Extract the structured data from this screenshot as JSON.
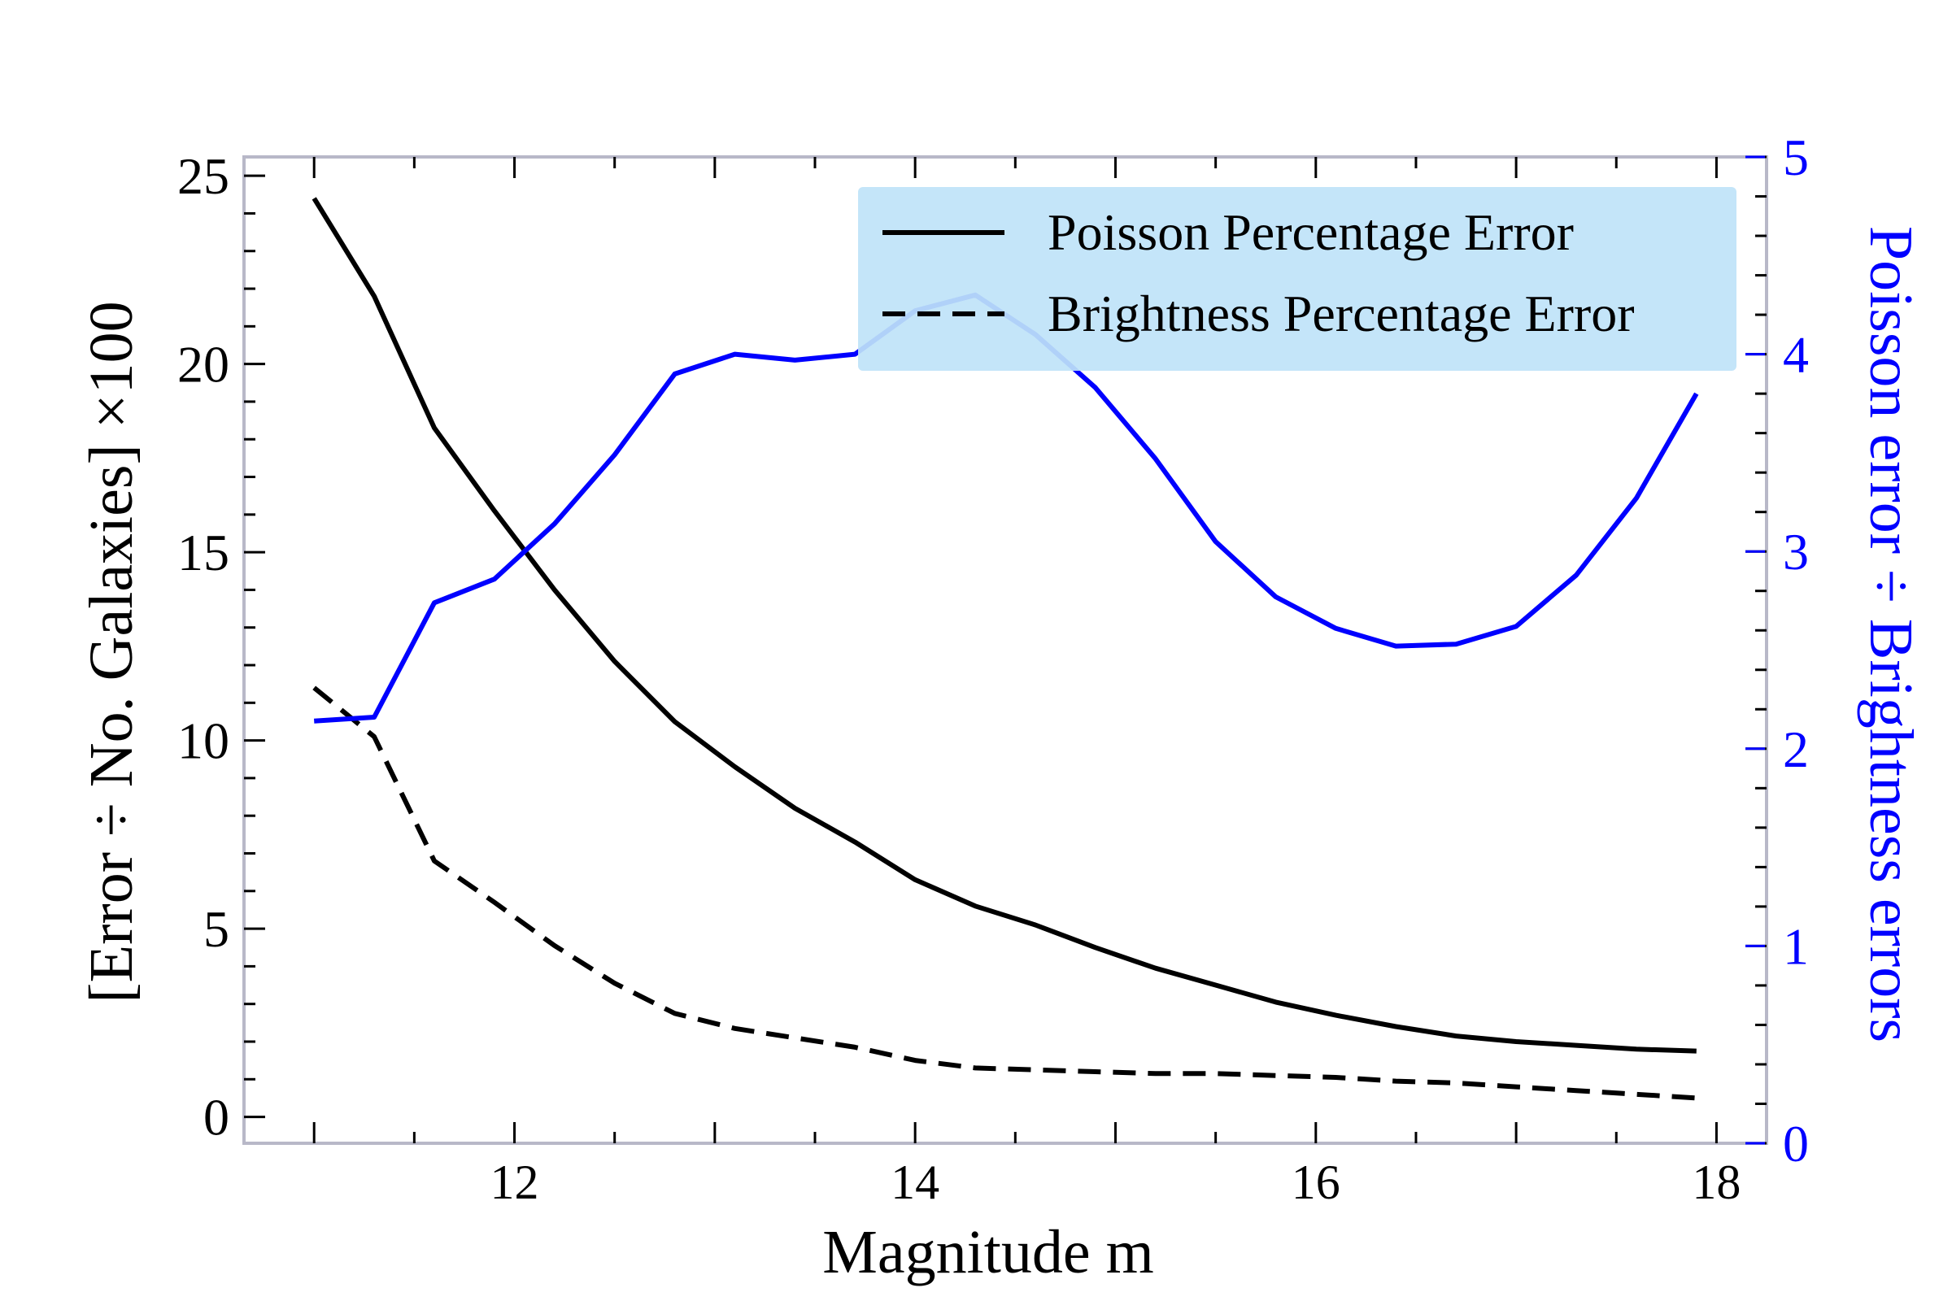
{
  "colors": {
    "poisson": "#000000",
    "brightness": "#000000",
    "ratio": "#0000ff",
    "spine": "#b8b8c8",
    "legend_bg": "#bfe3f8"
  },
  "chart_data": {
    "type": "line",
    "xlabel": "Magnitude m",
    "ylabel": "[Error ÷ No. Galaxies] ×100",
    "ylabel_right": "Poisson error ÷ Brightness errors",
    "xlim": [
      10.65,
      18.25
    ],
    "ylim": [
      -0.7,
      25.5
    ],
    "ylim_right": [
      0,
      5
    ],
    "xticks": [
      12,
      14,
      16,
      18
    ],
    "xtick_labels": [
      "12",
      "14",
      "16",
      "18"
    ],
    "yticks": [
      0,
      5,
      10,
      15,
      20,
      25
    ],
    "ytick_labels": [
      "0",
      "5",
      "10",
      "15",
      "20",
      "25"
    ],
    "yticks_right": [
      0,
      1,
      2,
      3,
      4,
      5
    ],
    "ytick_labels_right": [
      "0",
      "1",
      "2",
      "3",
      "4",
      "5"
    ],
    "legend_position": "top-right",
    "grid": false,
    "x": [
      11.0,
      11.3,
      11.6,
      11.9,
      12.2,
      12.5,
      12.8,
      13.1,
      13.4,
      13.7,
      14.0,
      14.3,
      14.6,
      14.9,
      15.2,
      15.5,
      15.8,
      16.1,
      16.4,
      16.7,
      17.0,
      17.3,
      17.6,
      17.9
    ],
    "series": [
      {
        "name": "Poisson Percentage Error",
        "axis": "left",
        "style": "solid",
        "values": [
          24.4,
          21.8,
          18.3,
          16.1,
          14.0,
          12.1,
          10.5,
          9.3,
          8.2,
          7.3,
          6.3,
          5.6,
          5.1,
          4.5,
          3.95,
          3.5,
          3.05,
          2.7,
          2.4,
          2.15,
          2.0,
          1.9,
          1.8,
          1.75
        ]
      },
      {
        "name": "Brightness Percentage Error",
        "axis": "left",
        "style": "dashed",
        "values": [
          11.4,
          10.1,
          6.8,
          5.7,
          4.55,
          3.55,
          2.75,
          2.35,
          2.1,
          1.85,
          1.5,
          1.3,
          1.25,
          1.2,
          1.15,
          1.15,
          1.1,
          1.05,
          0.95,
          0.9,
          0.8,
          0.7,
          0.6,
          0.5
        ]
      },
      {
        "axis": "right",
        "style": "solid",
        "values": [
          2.14,
          2.16,
          2.74,
          2.86,
          3.14,
          3.49,
          3.9,
          4.0,
          3.97,
          4.0,
          4.22,
          4.3,
          4.1,
          3.83,
          3.47,
          3.05,
          2.77,
          2.61,
          2.52,
          2.53,
          2.62,
          2.88,
          3.27,
          3.8
        ]
      }
    ]
  }
}
